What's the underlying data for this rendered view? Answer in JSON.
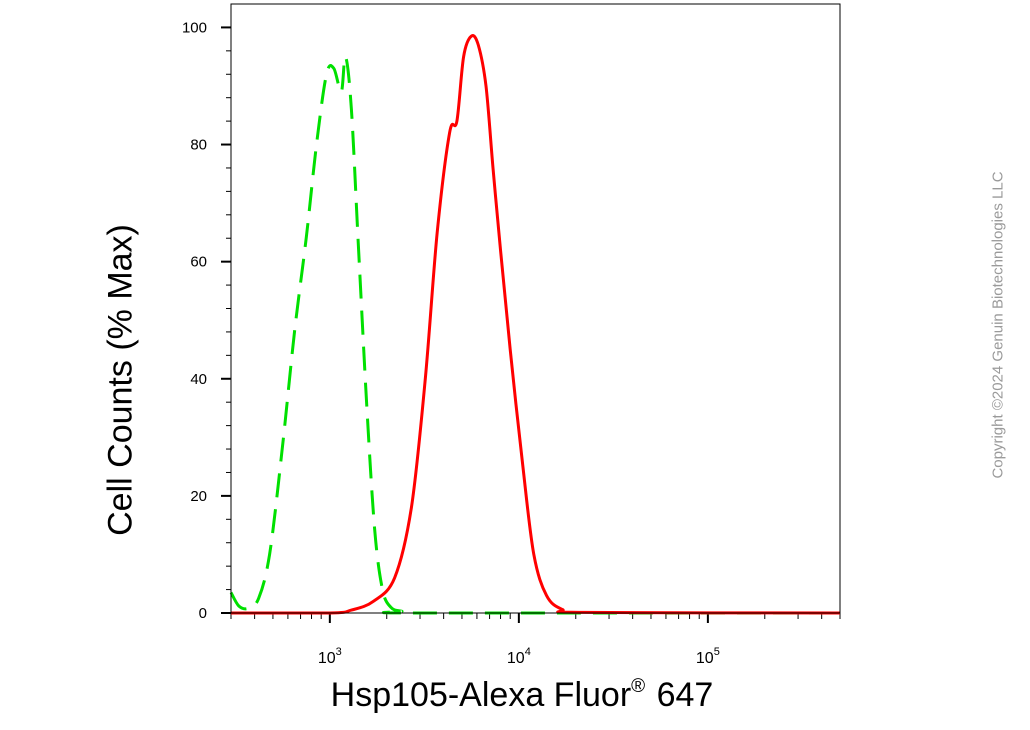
{
  "chart_data": {
    "type": "line",
    "xlabel": {
      "main": "Hsp105-Alexa Fluor",
      "mark": "®",
      "tail": " 647"
    },
    "ylabel": "Cell Counts (% Max)",
    "x_scale": "log",
    "xlim": [
      300,
      500000
    ],
    "ylim": [
      0,
      104
    ],
    "y_ticks": [
      0,
      20,
      40,
      60,
      80,
      100
    ],
    "x_ticks": [
      {
        "value": 1000,
        "base": "10",
        "exp": "3"
      },
      {
        "value": 10000,
        "base": "10",
        "exp": "4"
      },
      {
        "value": 100000,
        "base": "10",
        "exp": "5"
      }
    ],
    "grid": false,
    "series": [
      {
        "color": "#00e000",
        "dash": "dashed",
        "points": [
          [
            300,
            3.5
          ],
          [
            330,
            1.2
          ],
          [
            370,
            0.8
          ],
          [
            420,
            2.5
          ],
          [
            480,
            10
          ],
          [
            560,
            28
          ],
          [
            650,
            48
          ],
          [
            750,
            64
          ],
          [
            850,
            80
          ],
          [
            960,
            92
          ],
          [
            1050,
            93
          ],
          [
            1150,
            89
          ],
          [
            1210,
            95
          ],
          [
            1300,
            86
          ],
          [
            1420,
            62
          ],
          [
            1570,
            35
          ],
          [
            1730,
            14
          ],
          [
            1900,
            4
          ],
          [
            2100,
            1
          ],
          [
            2400,
            0.3
          ],
          [
            3000,
            0
          ],
          [
            500000,
            0
          ]
        ]
      },
      {
        "color": "#ff0000",
        "dash": "solid",
        "points": [
          [
            300,
            0
          ],
          [
            1000,
            0
          ],
          [
            1300,
            0.5
          ],
          [
            1700,
            2
          ],
          [
            2200,
            6
          ],
          [
            2700,
            18
          ],
          [
            3200,
            40
          ],
          [
            3700,
            65
          ],
          [
            4300,
            82
          ],
          [
            4700,
            84
          ],
          [
            5100,
            95
          ],
          [
            5600,
            98.5
          ],
          [
            6100,
            97
          ],
          [
            6700,
            90
          ],
          [
            7300,
            76
          ],
          [
            8000,
            62
          ],
          [
            9000,
            45
          ],
          [
            10500,
            25
          ],
          [
            12000,
            10
          ],
          [
            14000,
            3
          ],
          [
            17000,
            0.6
          ],
          [
            22000,
            0.1
          ],
          [
            500000,
            0
          ]
        ]
      }
    ]
  },
  "copyright": "Copyright ©2024 Genuin Biotechnologies LLC"
}
